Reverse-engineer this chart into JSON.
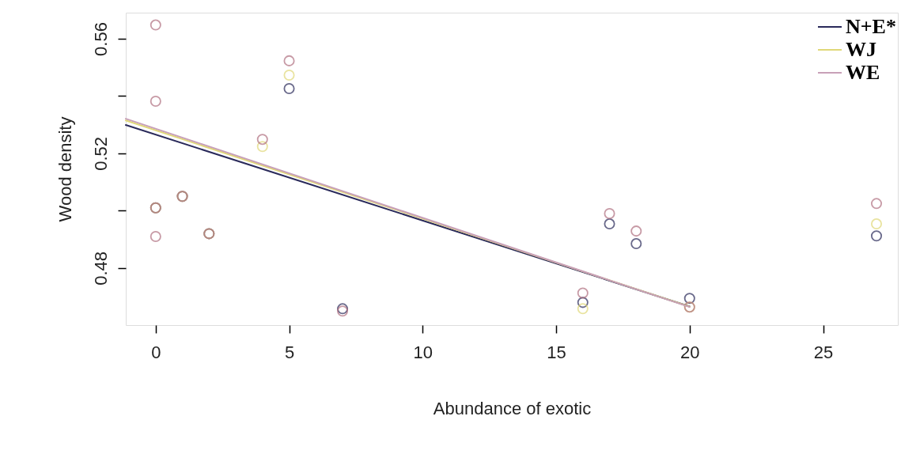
{
  "chart_data": {
    "type": "scatter",
    "xlabel": "Abundance of exotic",
    "ylabel": "Wood density",
    "xlim": [
      -1.12,
      27.8
    ],
    "ylim": [
      0.4601,
      0.5691
    ],
    "xticks": [
      0,
      5,
      10,
      15,
      20,
      25
    ],
    "yticks": [
      0.48,
      {
        "value": 0.5,
        "label": null
      },
      0.52,
      {
        "value": 0.54,
        "label": null
      },
      0.56
    ],
    "grid": false,
    "legend": "top right",
    "series": [
      {
        "marker": "circle",
        "color": "#2a2a5a",
        "x": [
          0,
          1,
          2,
          5,
          7,
          16,
          17,
          18,
          20,
          27
        ],
        "values": [
          0.501,
          0.505,
          0.492,
          0.5426,
          0.4658,
          0.468,
          0.4954,
          0.4885,
          0.4694,
          0.4912
        ]
      },
      {
        "marker": "circle",
        "color": "#e0d878",
        "x": [
          0,
          1,
          2,
          4,
          5,
          16,
          20,
          27
        ],
        "values": [
          0.501,
          0.505,
          0.492,
          0.5224,
          0.5473,
          0.4658,
          0.4664,
          0.4954
        ]
      },
      {
        "marker": "circle",
        "color": "#b07080",
        "x": [
          0,
          0,
          0,
          0,
          1,
          2,
          4,
          5,
          7,
          16,
          17,
          18,
          20,
          27
        ],
        "values": [
          0.5648,
          0.5382,
          0.501,
          0.491,
          0.505,
          0.492,
          0.5249,
          0.5523,
          0.465,
          0.4713,
          0.499,
          0.4929,
          0.4664,
          0.5025
        ]
      },
      {
        "type": "line",
        "name": "N+E*",
        "color": "#2a2a5a",
        "x": [
          -1.12,
          20
        ],
        "values": [
          0.5299,
          0.4666
        ]
      },
      {
        "type": "line",
        "name": "WJ",
        "color": "#e0d878",
        "x": [
          -1.12,
          20
        ],
        "values": [
          0.5315,
          0.4665
        ]
      },
      {
        "type": "line",
        "name": "WE",
        "color": "#c8a0b8",
        "x": [
          -1.12,
          20
        ],
        "values": [
          0.5321,
          0.4664
        ]
      }
    ]
  }
}
